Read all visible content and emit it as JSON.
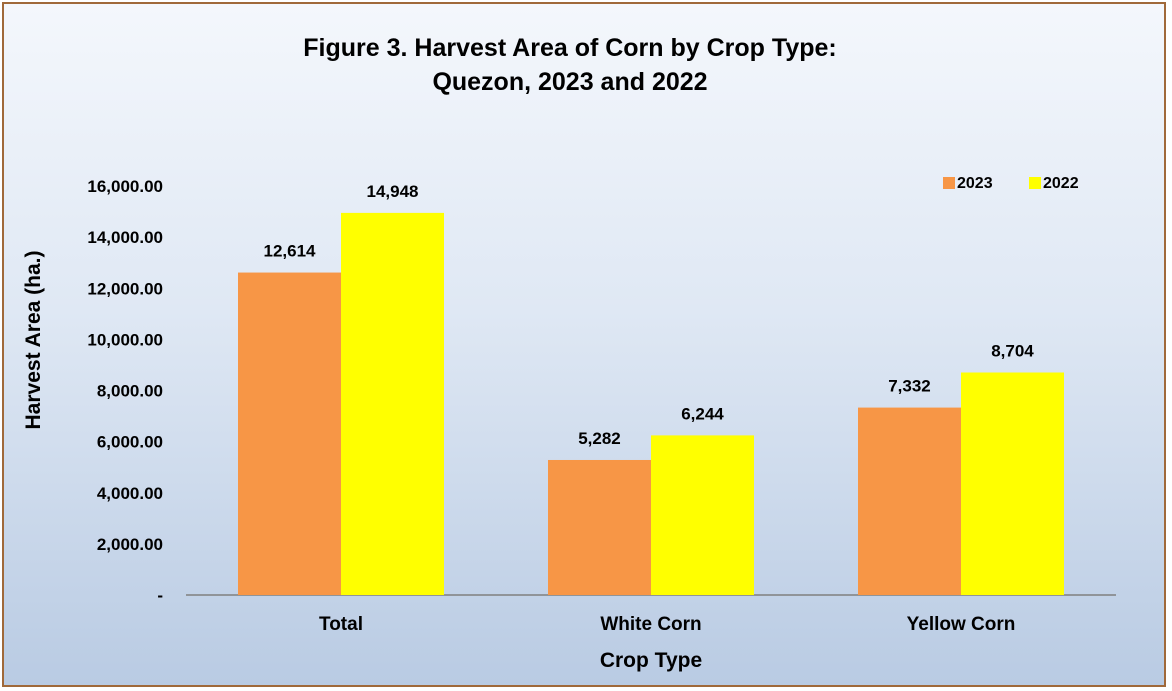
{
  "chart_data": {
    "type": "bar",
    "title_lines": [
      "Figure 3. Harvest Area of Corn by Crop Type:",
      "Quezon, 2023 and 2022"
    ],
    "categories": [
      "Total",
      "White Corn",
      "Yellow Corn"
    ],
    "series": [
      {
        "name": "2023",
        "color": "#f79646",
        "values": [
          12614,
          5282,
          7332
        ],
        "labels": [
          "12,614",
          "5,282",
          "7,332"
        ]
      },
      {
        "name": "2022",
        "color": "#ffff00",
        "values": [
          14948,
          6244,
          8704
        ],
        "labels": [
          "14,948",
          "6,244",
          "8,704"
        ]
      }
    ],
    "xlabel": "Crop Type",
    "ylabel": "Harvest Area (ha.)",
    "ylim": [
      0,
      16000
    ],
    "yticks": [
      0,
      2000,
      4000,
      6000,
      8000,
      10000,
      12000,
      14000,
      16000
    ],
    "ytick_labels": [
      "-",
      "2,000.00",
      "4,000.00",
      "6,000.00",
      "8,000.00",
      "10,000.00",
      "12,000.00",
      "14,000.00",
      "16,000.00"
    ],
    "grid": false,
    "legend_position": "top-right"
  }
}
